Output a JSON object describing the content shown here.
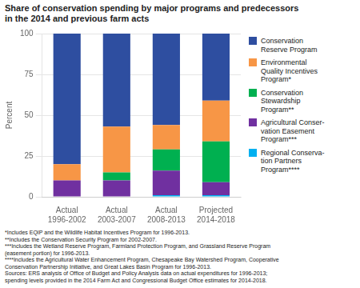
{
  "chart_data": {
    "type": "bar",
    "stacked": true,
    "title": "Share of conservation spending by major programs and predecessors\nin the 2014 and previous farm acts",
    "ylabel": "Percent",
    "categories": [
      "Actual\n1996-2002",
      "Actual\n2003-2007",
      "Actual\n2008-2013",
      "Projected\n2014-2018"
    ],
    "series": [
      {
        "name": "Regional Conserva-\ntion Partners\nProgram****",
        "color": "#00b0f0",
        "values": [
          0,
          0,
          1,
          1
        ]
      },
      {
        "name": "Agricultural Conser-\nvation Easement\nProgram***",
        "color": "#7030a0",
        "values": [
          10,
          10,
          15,
          8
        ]
      },
      {
        "name": "Conservation\nStewardship\nProgram**",
        "color": "#00b050",
        "values": [
          0,
          5,
          13,
          25
        ]
      },
      {
        "name": "Environmental\nQuality Incentives\nProgram*",
        "color": "#f79646",
        "values": [
          10,
          28,
          15,
          25
        ]
      },
      {
        "name": "Conservation\nReserve Program",
        "color": "#2e4ea0",
        "values": [
          80,
          57,
          56,
          41
        ]
      }
    ],
    "ylim": [
      0,
      100
    ],
    "yticks": [
      0,
      25,
      50,
      75,
      100
    ],
    "grid": true,
    "legend": "right",
    "annotations": [
      "*Includes EQIP and the Wildlife Habitat Incentives Program for 1996-2013.\n**Includes the Conservation Security Program for 2002-2007.\n***Includes the Wetland Reserve Program, Farmland Protection Program, and Grassland Reserve Program\n(easement portion) for 1996-2013.\n****Includes the Agricultural Water Enhancement Program, Chesapeake Bay Watershed Program, Cooperative\nConservation Partnership Initiative, and Great Lakes Basin Program for 1996-2013.\nSources:  ERS analysis of Office of Budget and Policy Analysis data on actual expenditures for 1996-2013;\nspending levels provided in the 2014 Farm Act and Congressional Budget Office estimates for 2014-2018."
    ]
  }
}
